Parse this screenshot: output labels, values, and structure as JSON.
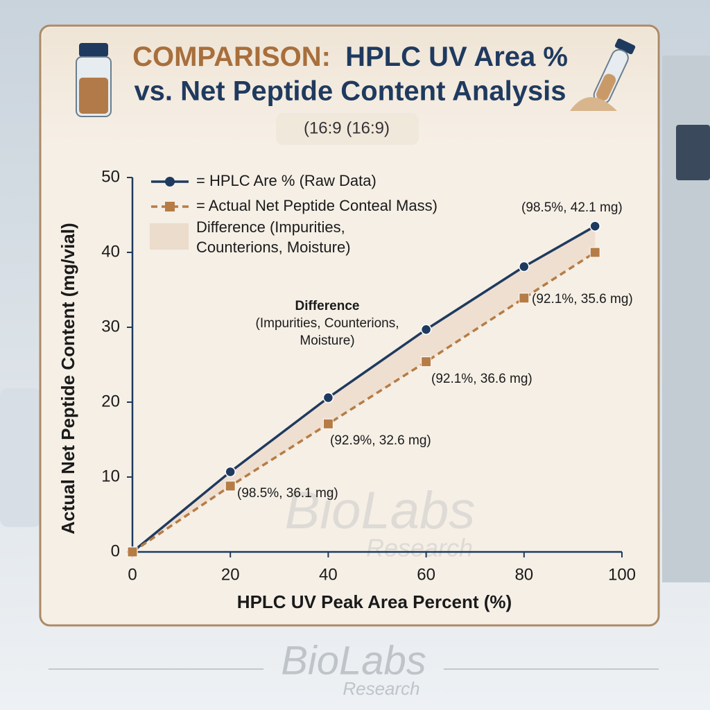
{
  "chart_data": {
    "type": "line",
    "title": {
      "highlight": "COMPARISON:",
      "line1": "HPLC UV Area %",
      "line2": "vs. Net Peptide Content Analysis"
    },
    "subtitle": "(16:9 (16:9)",
    "x_label": "HPLC UV Peak Area Percent (%)",
    "y_label": "Actual Net Peptide Content (mg/vial)",
    "x": [
      0,
      20,
      40,
      60,
      80,
      94.5
    ],
    "series": [
      {
        "name": "= HPLC Are % (Raw Data)",
        "color": "#1f3a5f",
        "marker": "circle",
        "dashed": false,
        "values": [
          0,
          10.7,
          20.6,
          29.7,
          38.1,
          43.5
        ]
      },
      {
        "name": "= Actual Net Peptide Conteal Mass)",
        "color": "#b67c45",
        "marker": "square",
        "dashed": true,
        "values": [
          0,
          8.8,
          17.1,
          25.4,
          33.9,
          40.0
        ]
      }
    ],
    "fill_label": [
      "Difference (Impurities,",
      "Counterions, Moisture)"
    ],
    "fill_color": "#ecdccb",
    "difference_note": {
      "title": "Difference",
      "lines": [
        "(Impurities, Counterions,",
        "Moisture)"
      ]
    },
    "annotations": [
      "(98.5%, 42.1 mg)",
      "(92.1%, 35.6 mg)",
      "(92.1%, 36.6 mg)",
      "(92.9%, 32.6 mg)",
      "(98.5%, 36.1 mg)"
    ],
    "xlim": [
      0,
      100
    ],
    "xticks": [
      0,
      20,
      40,
      60,
      80,
      100
    ],
    "ylim": [
      0,
      50
    ],
    "yticks": [
      0,
      10,
      20,
      30,
      40,
      50
    ],
    "grid": false,
    "legend": "upper-left",
    "watermark": {
      "name": "BioLabs",
      "sub": "Research"
    }
  }
}
